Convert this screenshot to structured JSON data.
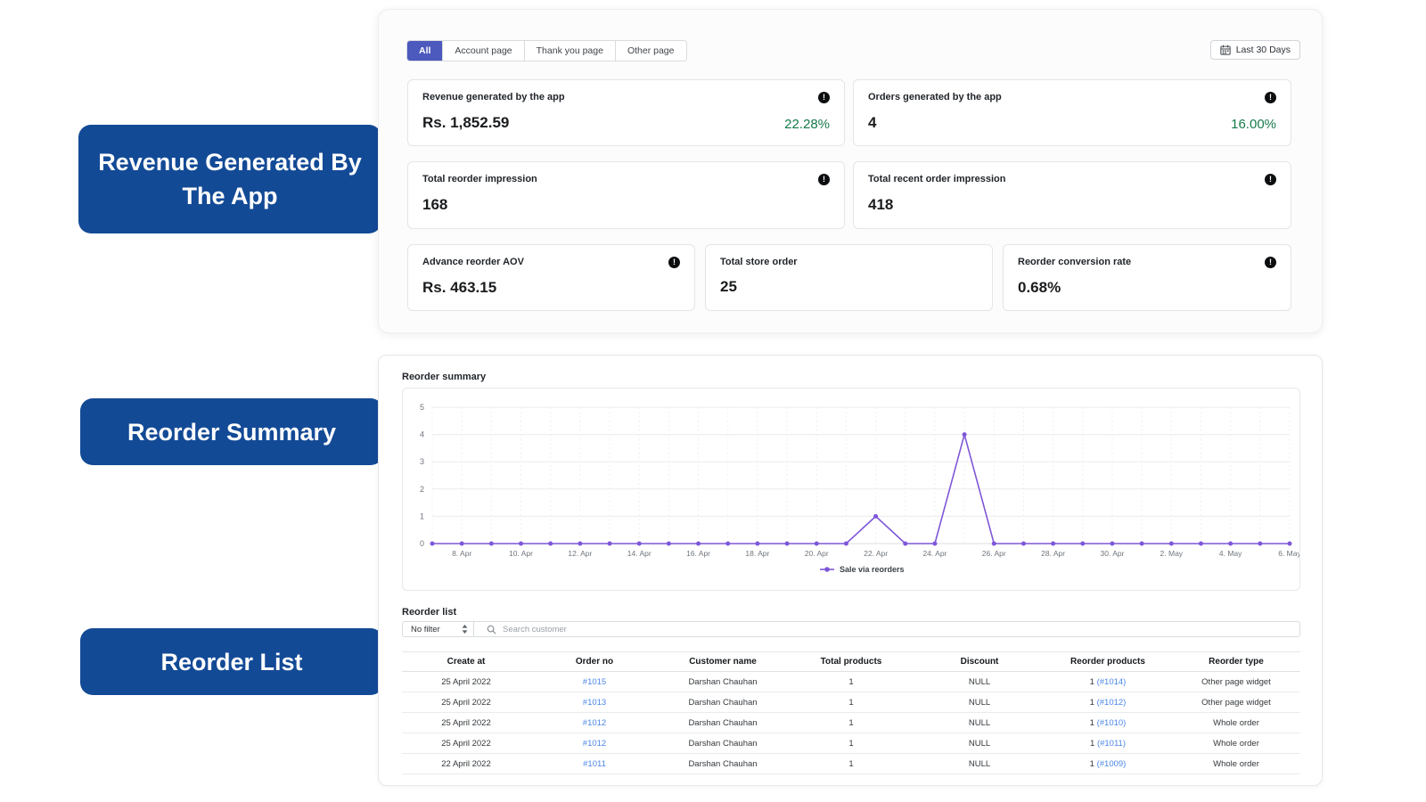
{
  "annotations": {
    "items": [
      {
        "label": "Revenue Generated By The App"
      },
      {
        "label": "Reorder Summary"
      },
      {
        "label": "Reorder List"
      }
    ]
  },
  "header": {
    "tabs": [
      {
        "label": "All",
        "active": true
      },
      {
        "label": "Account page",
        "active": false
      },
      {
        "label": "Thank you page",
        "active": false
      },
      {
        "label": "Other page",
        "active": false
      }
    ],
    "date_range_button": "Last 30 Days"
  },
  "metrics": {
    "rows": [
      [
        {
          "title": "Revenue generated by the app",
          "value": "Rs. 1,852.59",
          "delta": "22.28%",
          "info": true
        },
        {
          "title": "Orders generated by the app",
          "value": "4",
          "delta": "16.00%",
          "info": true
        }
      ],
      [
        {
          "title": "Total reorder impression",
          "value": "168",
          "info": true
        },
        {
          "title": "Total recent order impression",
          "value": "418",
          "info": true
        }
      ],
      [
        {
          "title": "Advance reorder AOV",
          "value": "Rs. 463.15",
          "info": true
        },
        {
          "title": "Total store order",
          "value": "25",
          "info": false
        },
        {
          "title": "Reorder conversion rate",
          "value": "0.68%",
          "info": true
        }
      ]
    ]
  },
  "reorder_summary": {
    "title": "Reorder summary"
  },
  "chart_data": {
    "type": "line",
    "title": "Reorder summary",
    "categories": [
      "7. Apr",
      "8. Apr",
      "9. Apr",
      "10. Apr",
      "11. Apr",
      "12. Apr",
      "13. Apr",
      "14. Apr",
      "15. Apr",
      "16. Apr",
      "17. Apr",
      "18. Apr",
      "19. Apr",
      "20. Apr",
      "21. Apr",
      "22. Apr",
      "23. Apr",
      "24. Apr",
      "25. Apr",
      "26. Apr",
      "27. Apr",
      "28. Apr",
      "29. Apr",
      "30. Apr",
      "1. May",
      "2. May",
      "3. May",
      "4. May",
      "5. May",
      "6. May"
    ],
    "series": [
      {
        "name": "Sale via reorders",
        "values": [
          0,
          0,
          0,
          0,
          0,
          0,
          0,
          0,
          0,
          0,
          0,
          0,
          0,
          0,
          0,
          1,
          0,
          0,
          4,
          0,
          0,
          0,
          0,
          0,
          0,
          0,
          0,
          0,
          0,
          0
        ]
      }
    ],
    "ylim": [
      0,
      5
    ],
    "yticks": [
      0,
      1,
      2,
      3,
      4,
      5
    ],
    "xtick_every": 2,
    "grid": true,
    "legend_position": "bottom",
    "line_color": "#7e57d8"
  },
  "reorder_list": {
    "title": "Reorder list",
    "filter": {
      "value": "No filter"
    },
    "search": {
      "placeholder": "Search customer"
    },
    "table": {
      "columns": [
        "Create at",
        "Order no",
        "Customer name",
        "Total products",
        "Discount",
        "Reorder products",
        "Reorder type"
      ],
      "rows": [
        {
          "create_at": "25 April 2022",
          "order_no": "#1015",
          "customer": "Darshan Chauhan",
          "total_products": "1",
          "discount": "NULL",
          "reorder_count": "1",
          "reorder_link": "(#1014)",
          "reorder_type": "Other page widget"
        },
        {
          "create_at": "25 April 2022",
          "order_no": "#1013",
          "customer": "Darshan Chauhan",
          "total_products": "1",
          "discount": "NULL",
          "reorder_count": "1",
          "reorder_link": "(#1012)",
          "reorder_type": "Other page widget"
        },
        {
          "create_at": "25 April 2022",
          "order_no": "#1012",
          "customer": "Darshan Chauhan",
          "total_products": "1",
          "discount": "NULL",
          "reorder_count": "1",
          "reorder_link": "(#1010)",
          "reorder_type": "Whole order"
        },
        {
          "create_at": "25 April 2022",
          "order_no": "#1012",
          "customer": "Darshan Chauhan",
          "total_products": "1",
          "discount": "NULL",
          "reorder_count": "1",
          "reorder_link": "(#1011)",
          "reorder_type": "Whole order"
        },
        {
          "create_at": "22 April 2022",
          "order_no": "#1011",
          "customer": "Darshan Chauhan",
          "total_products": "1",
          "discount": "NULL",
          "reorder_count": "1",
          "reorder_link": "(#1009)",
          "reorder_type": "Whole order"
        }
      ]
    }
  },
  "colors": {
    "annotation_bg": "#134a96",
    "active_tab": "#4c59bd",
    "positive_delta": "#177a4a",
    "chart_line": "#7e57d8",
    "link": "#4a86e8"
  }
}
